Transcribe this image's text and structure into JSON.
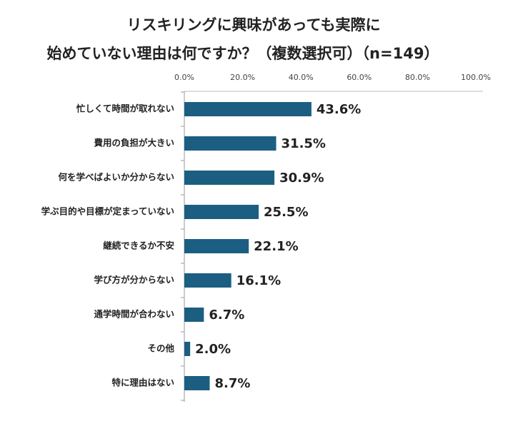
{
  "chart_data": {
    "type": "bar",
    "orientation": "horizontal",
    "title": [
      "リスキリングに興味があっても実際に",
      "始めていない理由は何ですか？（複数選択可）（n=149）"
    ],
    "categories": [
      "忙しくて時間が取れない",
      "費用の負担が大きい",
      "何を学べばよいか分からない",
      "学ぶ目的や目標が定まっていない",
      "継続できるか不安",
      "学び方が分からない",
      "通学時間が合わない",
      "その他",
      "特に理由はない"
    ],
    "values": [
      43.6,
      31.5,
      30.9,
      25.5,
      22.1,
      16.1,
      6.7,
      2.0,
      8.7
    ],
    "value_labels": [
      "43.6%",
      "31.5%",
      "30.9%",
      "25.5%",
      "22.1%",
      "16.1%",
      "6.7%",
      "2.0%",
      "8.7%"
    ],
    "color": "#1b5e82",
    "xlim": [
      0,
      100
    ],
    "xticks": [
      {
        "value": 0,
        "label": "0.0%"
      },
      {
        "value": 20,
        "label": "20.0%"
      },
      {
        "value": 40,
        "label": "40.0%"
      },
      {
        "value": 60,
        "label": "60.0%"
      },
      {
        "value": 80,
        "label": "80.0%"
      },
      {
        "value": 100,
        "label": "100.0%"
      }
    ],
    "grid": false
  }
}
